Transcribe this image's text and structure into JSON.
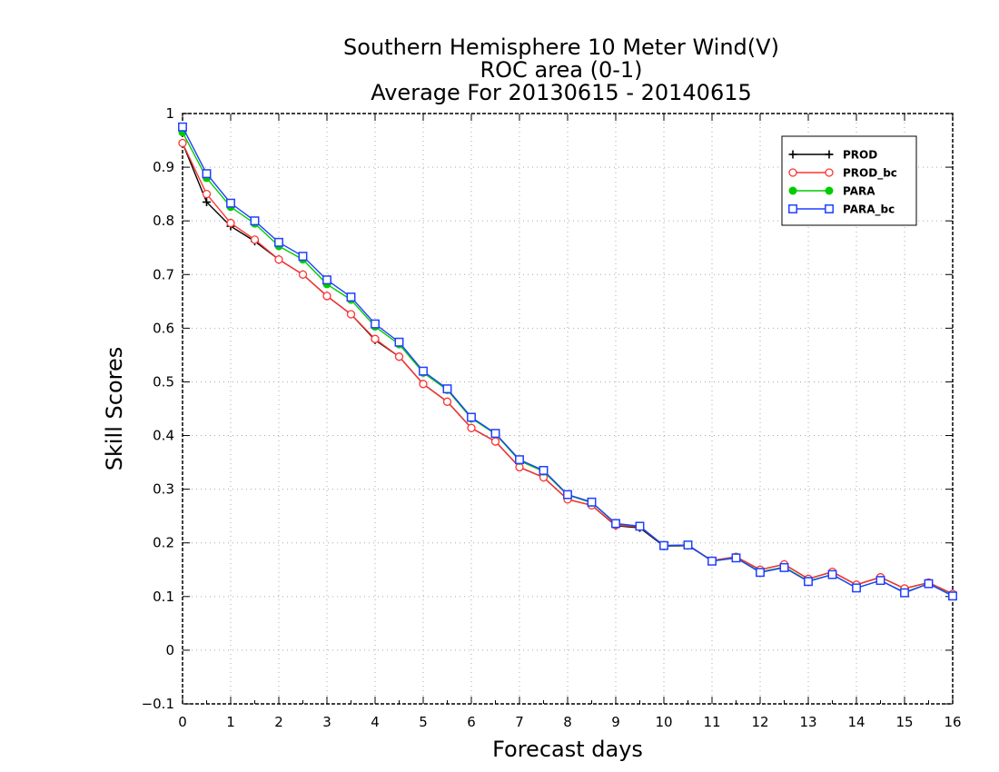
{
  "chart_data": {
    "type": "line",
    "title": [
      "Southern Hemisphere 10 Meter Wind(V)",
      "ROC area (0-1)",
      "Average For 20130615 - 20140615"
    ],
    "xlabel": "Forecast days",
    "ylabel": "Skill Scores",
    "xlim": [
      0,
      16
    ],
    "ylim": [
      -0.1,
      1
    ],
    "x_ticks": [
      0,
      1,
      2,
      3,
      4,
      5,
      6,
      7,
      8,
      9,
      10,
      11,
      12,
      13,
      14,
      15,
      16
    ],
    "x_tick_labels": [
      "0",
      "1",
      "2",
      "3",
      "4",
      "5",
      "6",
      "7",
      "8",
      "9",
      "10",
      "11",
      "12",
      "13",
      "14",
      "15",
      "16"
    ],
    "y_ticks": [
      -0.1,
      0,
      0.1,
      0.2,
      0.3,
      0.4,
      0.5,
      0.6,
      0.7,
      0.8,
      0.9,
      1
    ],
    "y_tick_labels": [
      "−0.1",
      "0",
      "0.1",
      "0.2",
      "0.3",
      "0.4",
      "0.5",
      "0.6",
      "0.7",
      "0.8",
      "0.9",
      "1"
    ],
    "grid": true,
    "legend_position": "top-right",
    "x": [
      0,
      0.5,
      1,
      1.5,
      2,
      2.5,
      3,
      3.5,
      4,
      4.5,
      5,
      5.5,
      6,
      6.5,
      7,
      7.5,
      8,
      8.5,
      9,
      9.5,
      10,
      10.5,
      11,
      11.5,
      12,
      12.5,
      13,
      13.5,
      14,
      14.5,
      15,
      15.5,
      16
    ],
    "series": [
      {
        "name": "PROD",
        "color": "#000000",
        "marker": "plus",
        "values": [
          0.945,
          0.835,
          0.79,
          0.762,
          0.728,
          0.7,
          0.66,
          0.626,
          0.578,
          0.547,
          0.496,
          0.463,
          0.414,
          0.389,
          0.341,
          0.322,
          0.281,
          0.27,
          0.232,
          0.228,
          0.194,
          0.195,
          0.167,
          0.174,
          0.15,
          0.16,
          0.133,
          0.146,
          0.122,
          0.136,
          0.115,
          0.126,
          0.105
        ]
      },
      {
        "name": "PROD_bc",
        "color": "#ff3333",
        "marker": "open-circle",
        "values": [
          0.945,
          0.85,
          0.796,
          0.765,
          0.728,
          0.7,
          0.66,
          0.626,
          0.58,
          0.547,
          0.496,
          0.463,
          0.414,
          0.389,
          0.341,
          0.322,
          0.281,
          0.27,
          0.233,
          0.23,
          0.195,
          0.196,
          0.167,
          0.174,
          0.15,
          0.16,
          0.133,
          0.146,
          0.122,
          0.136,
          0.115,
          0.126,
          0.105
        ]
      },
      {
        "name": "PARA",
        "color": "#00cc00",
        "marker": "filled-circle",
        "values": [
          0.965,
          0.88,
          0.826,
          0.795,
          0.753,
          0.728,
          0.682,
          0.653,
          0.603,
          0.57,
          0.517,
          0.485,
          0.432,
          0.403,
          0.353,
          0.333,
          0.289,
          0.275,
          0.236,
          0.231,
          0.195,
          0.196,
          0.166,
          0.172,
          0.146,
          0.155,
          0.129,
          0.141,
          0.116,
          0.13,
          0.108,
          0.124,
          0.102
        ]
      },
      {
        "name": "PARA_bc",
        "color": "#1f3fff",
        "marker": "open-square",
        "values": [
          0.975,
          0.888,
          0.833,
          0.8,
          0.76,
          0.734,
          0.69,
          0.658,
          0.608,
          0.574,
          0.52,
          0.487,
          0.434,
          0.404,
          0.355,
          0.335,
          0.29,
          0.276,
          0.236,
          0.231,
          0.195,
          0.196,
          0.166,
          0.172,
          0.145,
          0.154,
          0.128,
          0.141,
          0.116,
          0.13,
          0.107,
          0.124,
          0.101
        ]
      }
    ]
  }
}
